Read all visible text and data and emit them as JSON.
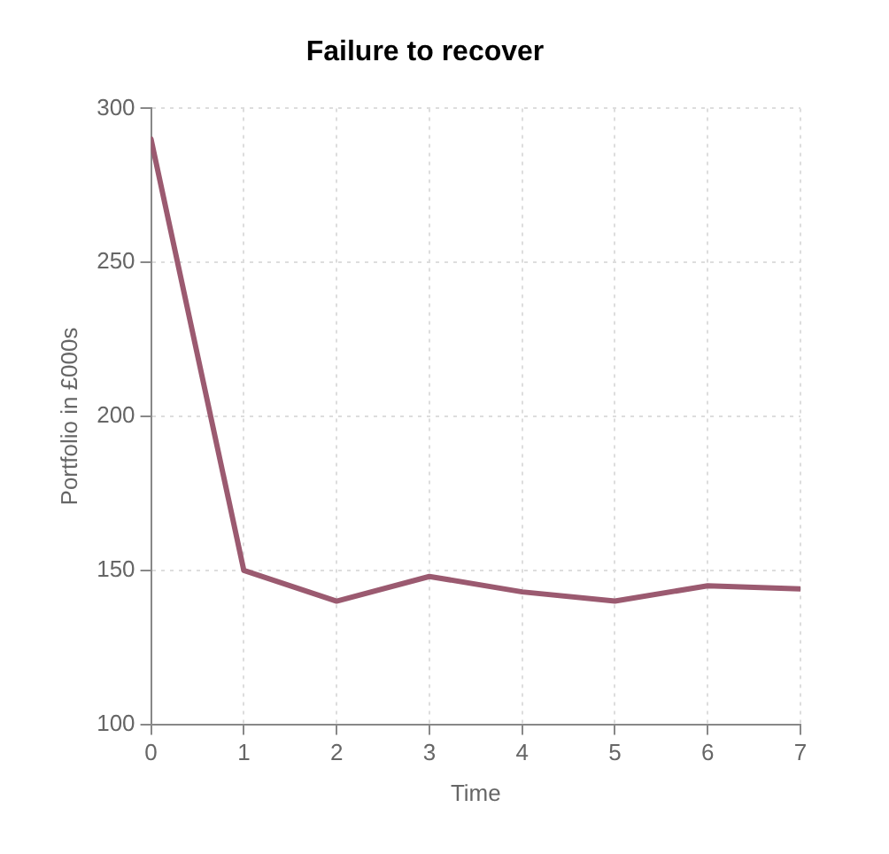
{
  "chart_data": {
    "type": "line",
    "title": "Failure to recover",
    "xlabel": "Time",
    "ylabel": "Portfolio in £000s",
    "x": [
      0,
      1,
      2,
      3,
      4,
      5,
      6,
      7
    ],
    "series": [
      {
        "color": "#9b5a70",
        "values": [
          290,
          150,
          140,
          148,
          143,
          140,
          145,
          144
        ]
      }
    ],
    "xlim": [
      0,
      7
    ],
    "xticks": [
      0,
      1,
      2,
      3,
      4,
      5,
      6,
      7
    ],
    "ylim": [
      100,
      300
    ],
    "yticks": [
      100,
      150,
      200,
      250,
      300
    ],
    "grid": true,
    "legend": false,
    "marker": "none",
    "line_style": "solid"
  }
}
